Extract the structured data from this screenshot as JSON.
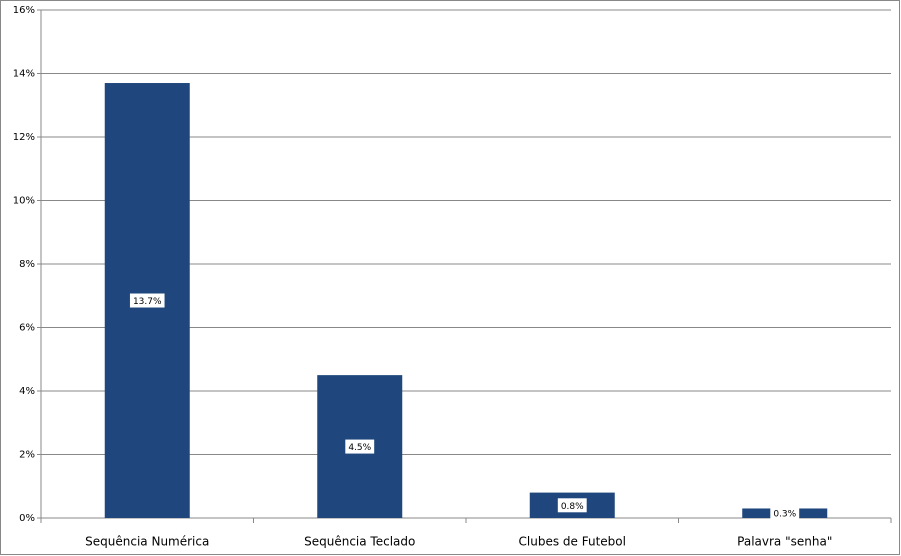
{
  "chart_data": {
    "type": "bar",
    "categories": [
      "Sequência Numérica",
      "Sequência Teclado",
      "Clubes de Futebol",
      "Palavra \"senha\""
    ],
    "values": [
      13.7,
      4.5,
      0.8,
      0.3
    ],
    "value_labels": [
      "13.7%",
      "4.5%",
      "0.8%",
      "0.3%"
    ],
    "color": "#1f477d",
    "ylim": [
      0,
      16
    ],
    "yticks": [
      {
        "value": 0,
        "label": "0%"
      },
      {
        "value": 2,
        "label": "2%"
      },
      {
        "value": 4,
        "label": "4%"
      },
      {
        "value": 6,
        "label": "6%"
      },
      {
        "value": 8,
        "label": "8%"
      },
      {
        "value": 10,
        "label": "10%"
      },
      {
        "value": 12,
        "label": "12%"
      },
      {
        "value": 14,
        "label": "14%"
      },
      {
        "value": 16,
        "label": "16%"
      }
    ],
    "grid": true
  }
}
